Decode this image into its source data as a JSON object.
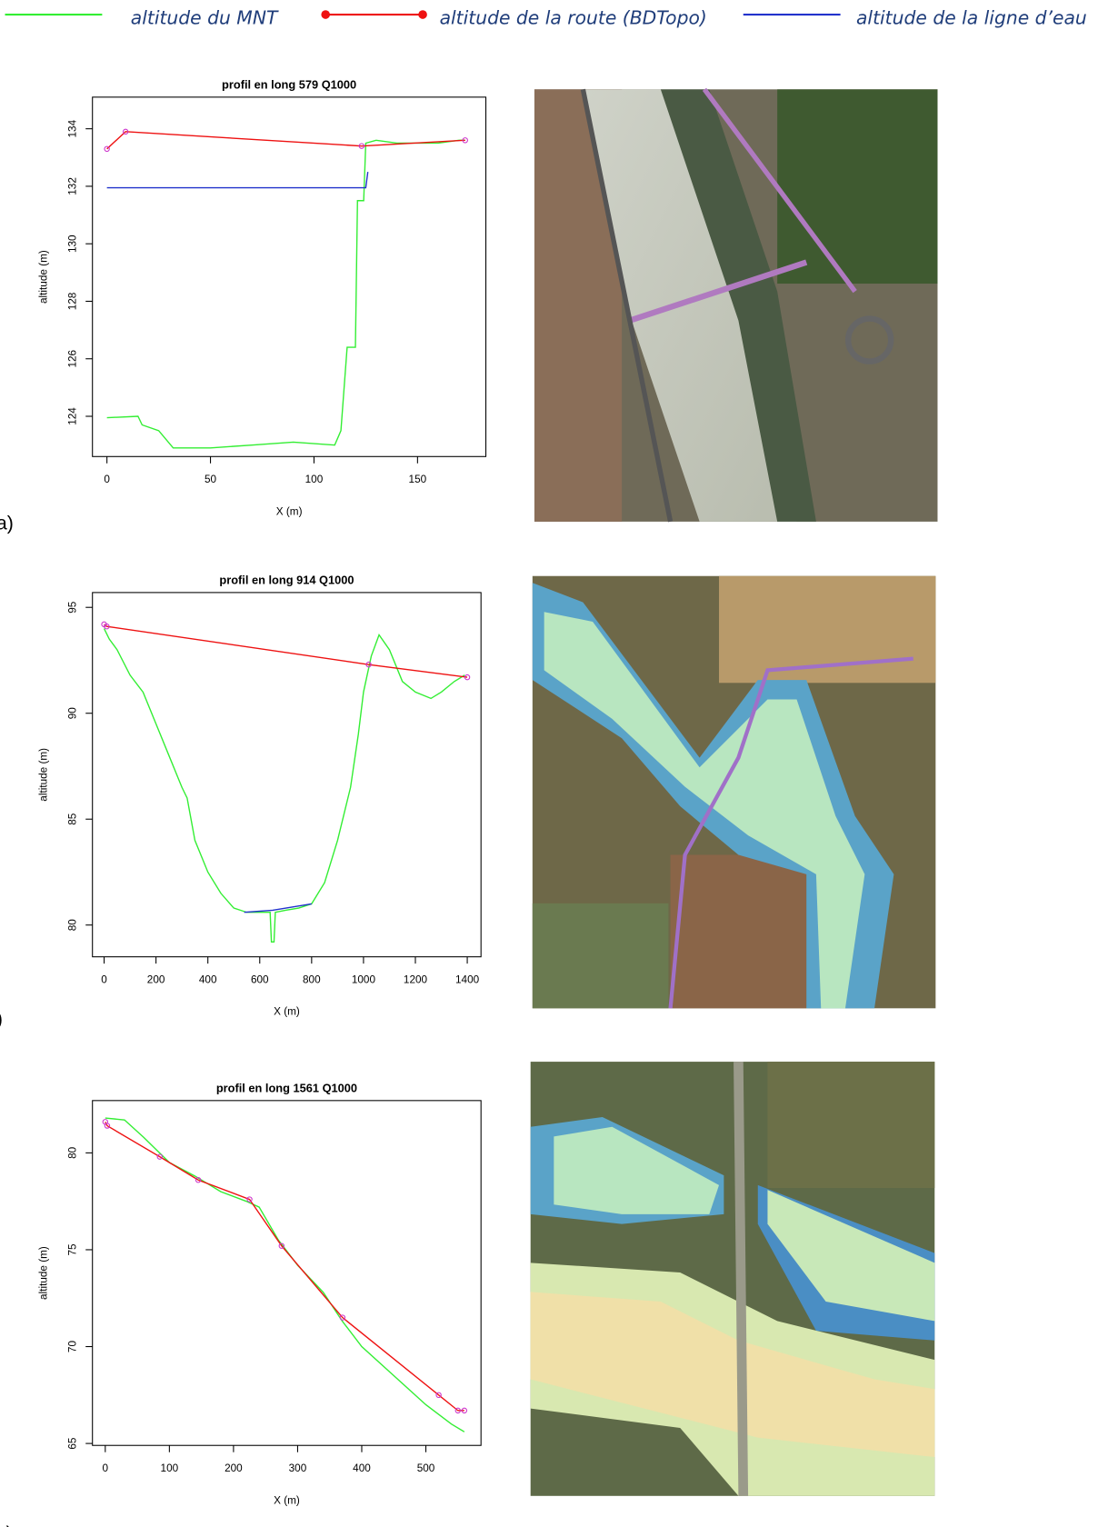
{
  "legend": [
    {
      "label": "altitude du MNT",
      "color": "#33ee33"
    },
    {
      "label": "altitude de la route (BDTopo)",
      "color": "#ee1111"
    },
    {
      "label": "altitude de la ligne d’eau",
      "color": "#2233cc"
    }
  ],
  "chart_data": [
    {
      "type": "line",
      "panel": "a)",
      "title": "profil en long 579 Q1000",
      "xlabel": "X (m)",
      "ylabel": "altitude (m)",
      "xlim": [
        -7,
        183
      ],
      "ylim": [
        122.6,
        135.1
      ],
      "xticks": [
        0,
        50,
        100,
        150
      ],
      "yticks": [
        124,
        126,
        128,
        130,
        132,
        134
      ],
      "series": [
        {
          "color": "#33ee33",
          "x": [
            0,
            15,
            17,
            25,
            32,
            50,
            70,
            90,
            110,
            113,
            116,
            120,
            121,
            124,
            125,
            130,
            140,
            150,
            160,
            170,
            173
          ],
          "values": [
            123.95,
            124,
            123.7,
            123.5,
            122.9,
            122.9,
            123,
            123.1,
            123,
            123.5,
            126.4,
            126.4,
            131.5,
            131.5,
            133.5,
            133.6,
            133.5,
            133.5,
            133.5,
            133.6,
            133.6
          ]
        },
        {
          "color": "#ee1111",
          "marker_color": "#cc33cc",
          "x": [
            0,
            9,
            123,
            173
          ],
          "values": [
            133.3,
            133.9,
            133.4,
            133.6
          ]
        },
        {
          "color": "#2233cc",
          "x": [
            0,
            125,
            126
          ],
          "values": [
            131.95,
            131.95,
            132.5
          ]
        }
      ]
    },
    {
      "type": "line",
      "panel": ")",
      "title": "profil en long 914 Q1000",
      "xlabel": "X (m)",
      "ylabel": "altitude (m)",
      "xlim": [
        -45,
        1453
      ],
      "ylim": [
        78.5,
        95.7
      ],
      "xticks": [
        0,
        200,
        400,
        600,
        800,
        1000,
        1200,
        1400
      ],
      "yticks": [
        80,
        85,
        90,
        95
      ],
      "series": [
        {
          "color": "#33ee33",
          "x": [
            0,
            20,
            50,
            100,
            150,
            200,
            250,
            300,
            320,
            350,
            400,
            450,
            500,
            550,
            600,
            640,
            645,
            655,
            660,
            700,
            750,
            800,
            850,
            900,
            950,
            980,
            1000,
            1030,
            1060,
            1100,
            1150,
            1200,
            1260,
            1300,
            1350,
            1390
          ],
          "values": [
            94,
            93.5,
            93,
            91.8,
            91,
            89.5,
            88,
            86.5,
            86,
            84,
            82.5,
            81.5,
            80.8,
            80.6,
            80.6,
            80.6,
            79.2,
            79.2,
            80.6,
            80.7,
            80.8,
            81,
            82,
            84,
            86.5,
            89,
            91,
            92.7,
            93.7,
            93,
            91.5,
            91,
            90.7,
            91,
            91.5,
            91.8
          ]
        },
        {
          "color": "#ee1111",
          "marker_color": "#cc33cc",
          "x": [
            0,
            10,
            1020,
            1400
          ],
          "values": [
            94.2,
            94.1,
            92.3,
            91.7
          ]
        },
        {
          "color": "#2233cc",
          "x": [
            540,
            650,
            800
          ],
          "values": [
            80.6,
            80.7,
            81
          ]
        }
      ]
    },
    {
      "type": "line",
      "panel": "c)",
      "title": "profil en long 1561 Q1000",
      "xlabel": "X (m)",
      "ylabel": "altitude (m)",
      "xlim": [
        -20,
        586
      ],
      "ylim": [
        64.9,
        82.7
      ],
      "xticks": [
        0,
        100,
        200,
        300,
        400,
        500
      ],
      "yticks": [
        65,
        70,
        75,
        80
      ],
      "series": [
        {
          "color": "#33ee33",
          "x": [
            0,
            30,
            60,
            100,
            140,
            180,
            220,
            240,
            270,
            300,
            340,
            370,
            400,
            450,
            500,
            540,
            560
          ],
          "values": [
            81.8,
            81.7,
            80.8,
            79.5,
            78.8,
            78,
            77.5,
            77.2,
            75.5,
            74.2,
            72.8,
            71.3,
            70,
            68.5,
            67,
            66,
            65.6
          ]
        },
        {
          "color": "#ee1111",
          "marker_color": "#cc33cc",
          "x": [
            0,
            3,
            85,
            145,
            225,
            275,
            370,
            520,
            550,
            560
          ],
          "values": [
            81.6,
            81.4,
            79.8,
            78.6,
            77.6,
            75.2,
            71.5,
            67.5,
            66.7,
            66.7
          ]
        }
      ]
    }
  ]
}
